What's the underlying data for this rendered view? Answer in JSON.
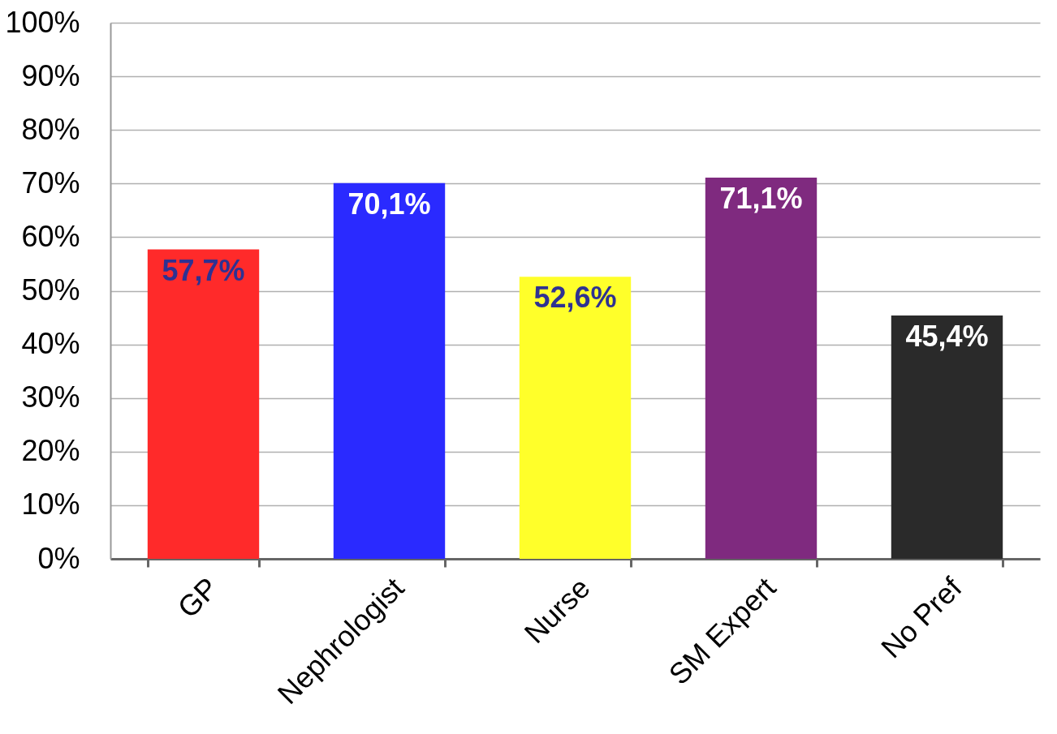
{
  "chart_data": {
    "type": "bar",
    "categories": [
      "GP",
      "Nephrologist",
      "Nurse",
      "SM Expert",
      "No Pref"
    ],
    "values": [
      57.7,
      70.1,
      52.6,
      71.1,
      45.4
    ],
    "colors": [
      "#ff2a2a",
      "#2a2aff",
      "#ffff2a",
      "#7f2a7f",
      "#2a2a2a"
    ],
    "value_labels": [
      "57,7%",
      "70,1%",
      "52,6%",
      "71,1%",
      "45,4%"
    ],
    "ylim": [
      0,
      100
    ],
    "yticks": [
      {
        "value": 0,
        "label": "0%"
      },
      {
        "value": 10,
        "label": "10%"
      },
      {
        "value": 20,
        "label": "20%"
      },
      {
        "value": 30,
        "label": "30%"
      },
      {
        "value": 40,
        "label": "40%"
      },
      {
        "value": 50,
        "label": "50%"
      },
      {
        "value": 60,
        "label": "60%"
      },
      {
        "value": 70,
        "label": "70%"
      },
      {
        "value": 80,
        "label": "80%"
      },
      {
        "value": 90,
        "label": "90%"
      },
      {
        "value": 100,
        "label": "100%"
      }
    ],
    "grid": "y"
  }
}
